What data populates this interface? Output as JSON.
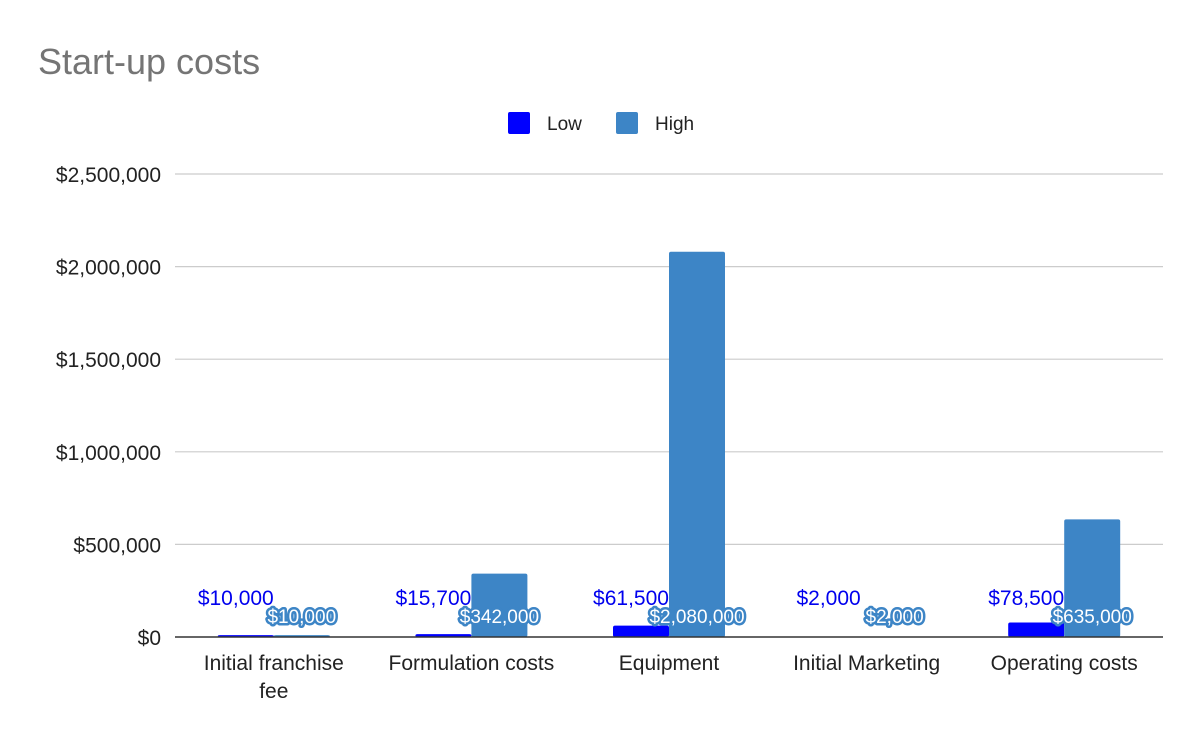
{
  "chart_data": {
    "type": "bar",
    "title": "Start-up costs",
    "xlabel": "",
    "ylabel": "",
    "categories": [
      "Initial franchise fee",
      "Formulation costs",
      "Equipment",
      "Initial Marketing",
      "Operating costs"
    ],
    "series": [
      {
        "name": "Low",
        "color": "#0000ff",
        "values": [
          10000,
          15700,
          61500,
          2000,
          78500
        ],
        "labels": [
          "$10,000",
          "$15,700",
          "$61,500",
          "$2,000",
          "$78,500"
        ]
      },
      {
        "name": "High",
        "color": "#3d85c6",
        "values": [
          10000,
          342000,
          2080000,
          2000,
          635000
        ],
        "labels": [
          "$10,000",
          "$342,000",
          "$2,080,000",
          "$2,000",
          "$635,000"
        ]
      }
    ],
    "ylim": [
      0,
      2500000
    ],
    "yticks": [
      0,
      500000,
      1000000,
      1500000,
      2000000,
      2500000
    ],
    "ytick_labels": [
      "$0",
      "$500,000",
      "$1,000,000",
      "$1,500,000",
      "$2,000,000",
      "$2,500,000"
    ],
    "grid": true,
    "legend": "top-center"
  }
}
